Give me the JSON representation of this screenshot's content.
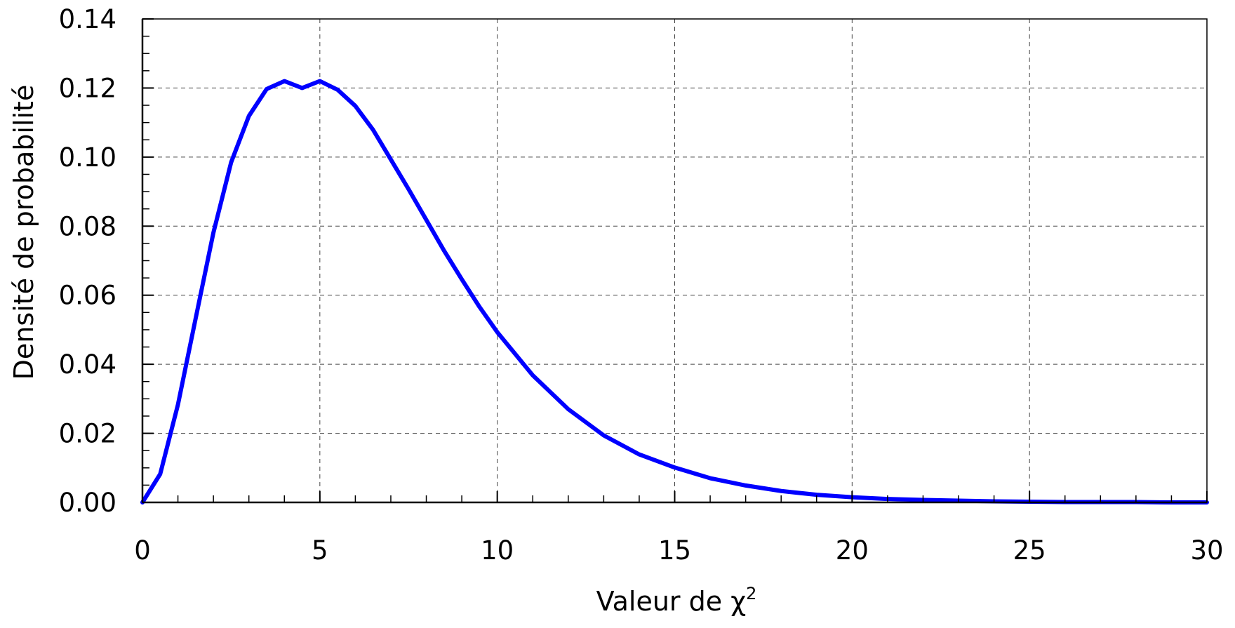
{
  "chart_data": {
    "type": "line",
    "title": "",
    "xlabel": "Valeur de χ",
    "xlabel_superscript": "2",
    "ylabel": "Densité de probabilité",
    "xlim": [
      0,
      30
    ],
    "ylim": [
      0,
      0.14
    ],
    "x_ticks": [
      "0",
      "5",
      "10",
      "15",
      "20",
      "25",
      "30"
    ],
    "y_ticks": [
      "0.00",
      "0.02",
      "0.04",
      "0.06",
      "0.08",
      "0.10",
      "0.12",
      "0.14"
    ],
    "grid": true,
    "legend": "none",
    "series": [
      {
        "color": "#0000ff",
        "distribution": "chi-square, 7 degrees of freedom",
        "x": [
          0,
          0.5,
          1,
          1.5,
          2,
          2.5,
          3,
          3.5,
          4,
          4.5,
          5,
          5.5,
          6,
          6.5,
          7,
          7.5,
          8,
          8.5,
          9,
          9.5,
          10,
          11,
          12,
          13,
          14,
          15,
          16,
          17,
          18,
          19,
          20,
          21,
          22,
          23,
          24,
          25,
          26,
          27,
          28,
          29,
          30
        ],
        "y": [
          0,
          0.0082,
          0.0283,
          0.0533,
          0.0781,
          0.0985,
          0.1119,
          0.1197,
          0.122,
          0.12,
          0.122,
          0.1195,
          0.1148,
          0.1079,
          0.0993,
          0.0907,
          0.0818,
          0.0729,
          0.0646,
          0.0566,
          0.0493,
          0.0368,
          0.027,
          0.0194,
          0.0139,
          0.0101,
          0.007,
          0.0049,
          0.0033,
          0.0022,
          0.0015,
          0.001,
          0.0007,
          0.0005,
          0.0003,
          0.0002,
          0.0001,
          0.0001,
          0.0001,
          0.0,
          0.0
        ]
      }
    ]
  }
}
